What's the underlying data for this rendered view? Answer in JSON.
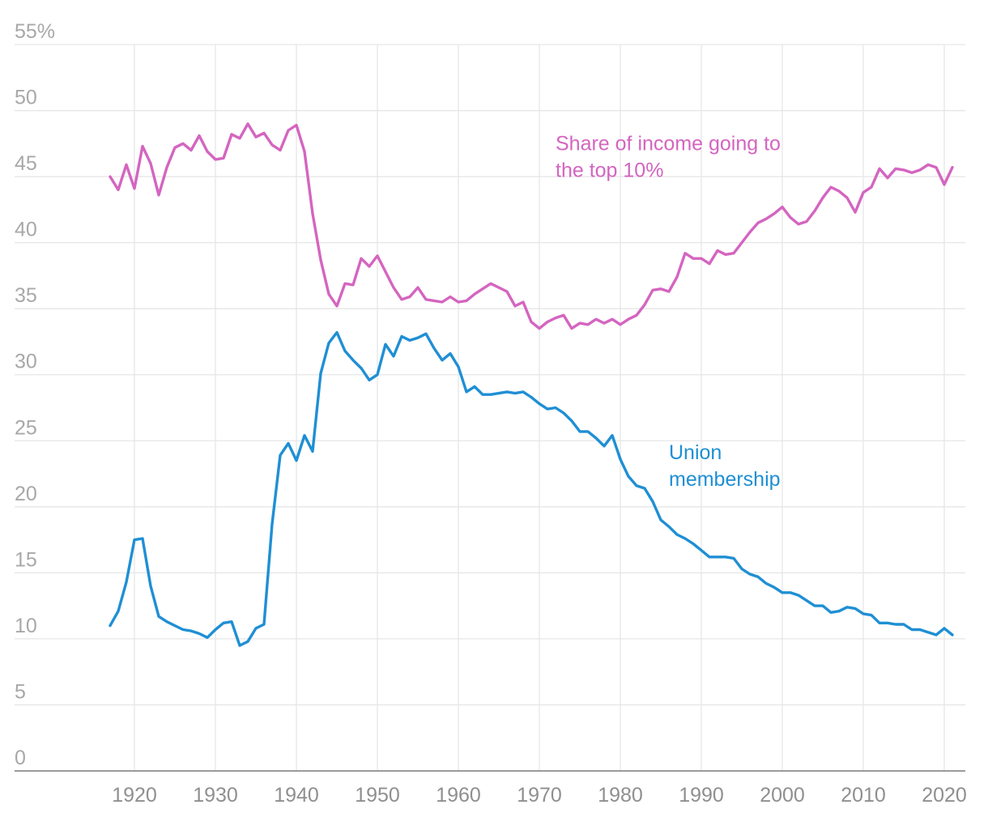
{
  "chart_data": {
    "type": "line",
    "title": "",
    "xlabel": "",
    "ylabel": "",
    "ylim": [
      0,
      55
    ],
    "xlim": [
      1910,
      2023
    ],
    "grid": true,
    "y_ticks": [
      0,
      5,
      10,
      15,
      20,
      25,
      30,
      35,
      40,
      45,
      50,
      55
    ],
    "y_tick_labels": [
      "0",
      "5",
      "10",
      "15",
      "20",
      "25",
      "30",
      "35",
      "40",
      "45",
      "50",
      "55%"
    ],
    "x_ticks": [
      1920,
      1930,
      1940,
      1950,
      1960,
      1970,
      1980,
      1990,
      2000,
      2010,
      2020
    ],
    "x_tick_labels": [
      "1920",
      "1930",
      "1940",
      "1950",
      "1960",
      "1970",
      "1980",
      "1990",
      "2000",
      "2010",
      "2020"
    ],
    "series": [
      {
        "name": "Share of income going to the top 10%",
        "label_lines": [
          "Share of income going to",
          "the top 10%"
        ],
        "label_anchor": {
          "x": 1972,
          "y": 47
        },
        "color": "#d465c0",
        "x": [
          1917,
          1918,
          1919,
          1920,
          1921,
          1922,
          1923,
          1924,
          1925,
          1926,
          1927,
          1928,
          1929,
          1930,
          1931,
          1932,
          1933,
          1934,
          1935,
          1936,
          1937,
          1938,
          1939,
          1940,
          1941,
          1942,
          1943,
          1944,
          1945,
          1946,
          1947,
          1948,
          1949,
          1950,
          1951,
          1952,
          1953,
          1954,
          1955,
          1956,
          1957,
          1958,
          1959,
          1960,
          1961,
          1962,
          1963,
          1964,
          1965,
          1966,
          1967,
          1968,
          1969,
          1970,
          1971,
          1972,
          1973,
          1974,
          1975,
          1976,
          1977,
          1978,
          1979,
          1980,
          1981,
          1982,
          1983,
          1984,
          1985,
          1986,
          1987,
          1988,
          1989,
          1990,
          1991,
          1992,
          1993,
          1994,
          1995,
          1996,
          1997,
          1998,
          1999,
          2000,
          2001,
          2002,
          2003,
          2004,
          2005,
          2006,
          2007,
          2008,
          2009,
          2010,
          2011,
          2012,
          2013,
          2014,
          2015,
          2016,
          2017,
          2018,
          2019,
          2020,
          2021
        ],
        "values": [
          45.0,
          44.0,
          45.9,
          44.1,
          47.3,
          46.0,
          43.6,
          45.7,
          47.2,
          47.5,
          47.0,
          48.1,
          46.9,
          46.3,
          46.4,
          48.2,
          47.9,
          49.0,
          48.0,
          48.3,
          47.4,
          47.0,
          48.5,
          48.9,
          46.9,
          42.2,
          38.7,
          36.1,
          35.2,
          36.9,
          36.8,
          38.8,
          38.2,
          39.0,
          37.8,
          36.6,
          35.7,
          35.9,
          36.6,
          35.7,
          35.6,
          35.5,
          35.9,
          35.5,
          35.6,
          36.1,
          36.5,
          36.9,
          36.6,
          36.3,
          35.2,
          35.5,
          34.0,
          33.5,
          34.0,
          34.3,
          34.5,
          33.5,
          33.9,
          33.8,
          34.2,
          33.9,
          34.2,
          33.8,
          34.2,
          34.5,
          35.3,
          36.4,
          36.5,
          36.3,
          37.4,
          39.2,
          38.8,
          38.8,
          38.4,
          39.4,
          39.1,
          39.2,
          40.0,
          40.8,
          41.5,
          41.8,
          42.2,
          42.7,
          41.9,
          41.4,
          41.6,
          42.4,
          43.4,
          44.2,
          43.9,
          43.4,
          42.3,
          43.8,
          44.2,
          45.6,
          44.9,
          45.6,
          45.5,
          45.3,
          45.5,
          45.9,
          45.7,
          44.4,
          45.7
        ]
      },
      {
        "name": "Union membership",
        "label_lines": [
          "Union",
          "membership"
        ],
        "label_anchor": {
          "x": 1986,
          "y": 23.6
        },
        "color": "#1f8fd4",
        "x": [
          1917,
          1918,
          1919,
          1920,
          1921,
          1922,
          1923,
          1924,
          1925,
          1926,
          1927,
          1928,
          1929,
          1930,
          1931,
          1932,
          1933,
          1934,
          1935,
          1936,
          1937,
          1938,
          1939,
          1940,
          1941,
          1942,
          1943,
          1944,
          1945,
          1946,
          1947,
          1948,
          1949,
          1950,
          1951,
          1952,
          1953,
          1954,
          1955,
          1956,
          1957,
          1958,
          1959,
          1960,
          1961,
          1962,
          1963,
          1964,
          1965,
          1966,
          1967,
          1968,
          1969,
          1970,
          1971,
          1972,
          1973,
          1974,
          1975,
          1976,
          1977,
          1978,
          1979,
          1980,
          1981,
          1982,
          1983,
          1984,
          1985,
          1986,
          1987,
          1988,
          1989,
          1990,
          1991,
          1992,
          1993,
          1994,
          1995,
          1996,
          1997,
          1998,
          1999,
          2000,
          2001,
          2002,
          2003,
          2004,
          2005,
          2006,
          2007,
          2008,
          2009,
          2010,
          2011,
          2012,
          2013,
          2014,
          2015,
          2016,
          2017,
          2018,
          2019,
          2020,
          2021
        ],
        "values": [
          11.0,
          12.1,
          14.3,
          17.5,
          17.6,
          14.0,
          11.7,
          11.3,
          11.0,
          10.7,
          10.6,
          10.4,
          10.1,
          10.7,
          11.2,
          11.3,
          9.5,
          9.8,
          10.8,
          11.1,
          18.7,
          23.9,
          24.8,
          23.5,
          25.4,
          24.2,
          30.1,
          32.4,
          33.2,
          31.8,
          31.1,
          30.5,
          29.6,
          30.0,
          32.3,
          31.4,
          32.9,
          32.6,
          32.8,
          33.1,
          32.0,
          31.1,
          31.6,
          30.6,
          28.7,
          29.1,
          28.5,
          28.5,
          28.6,
          28.7,
          28.6,
          28.7,
          28.3,
          27.8,
          27.4,
          27.5,
          27.1,
          26.5,
          25.7,
          25.7,
          25.2,
          24.6,
          25.4,
          23.6,
          22.3,
          21.6,
          21.4,
          20.4,
          19.0,
          18.5,
          17.9,
          17.6,
          17.2,
          16.7,
          16.2,
          16.2,
          16.2,
          16.1,
          15.3,
          14.9,
          14.7,
          14.2,
          13.9,
          13.5,
          13.5,
          13.3,
          12.9,
          12.5,
          12.5,
          12.0,
          12.1,
          12.4,
          12.3,
          11.9,
          11.8,
          11.2,
          11.2,
          11.1,
          11.1,
          10.7,
          10.7,
          10.5,
          10.3,
          10.8,
          10.3
        ]
      }
    ]
  }
}
